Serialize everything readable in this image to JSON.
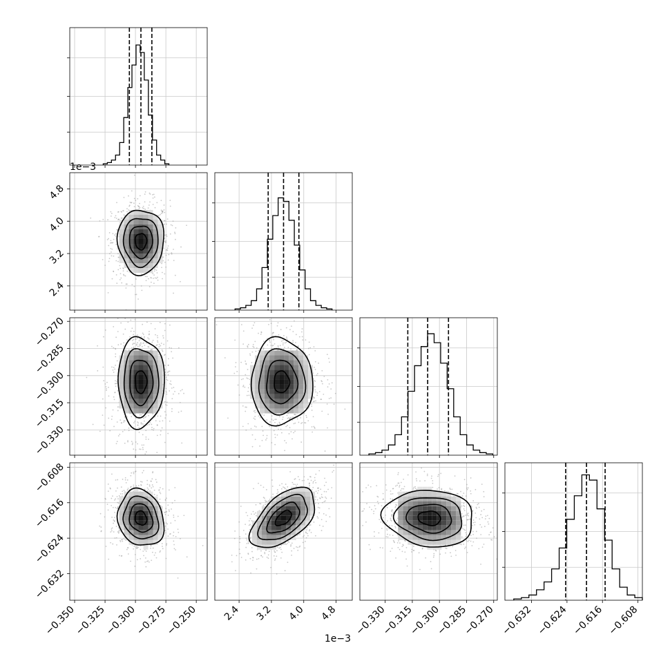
{
  "chart_data": {
    "type": "corner",
    "grid": true,
    "parameters": [
      {
        "range": [
          -0.354,
          -0.241
        ],
        "ticks": [
          -0.35,
          -0.325,
          -0.3,
          -0.275,
          -0.25
        ],
        "tick_labels": [
          "−0.350",
          "−0.325",
          "−0.300",
          "−0.275",
          "−0.250"
        ],
        "quantiles": [
          -0.305,
          -0.2955,
          -0.2865
        ],
        "hist_bins": [
          0.01,
          0.02,
          0.04,
          0.08,
          0.18,
          0.38,
          0.62,
          0.8,
          0.96,
          0.9,
          0.68,
          0.4,
          0.2,
          0.08,
          0.04,
          0.01
        ],
        "hist_peak_frac": 0.91,
        "hist_edges": [
          -0.3265,
          -0.2725
        ]
      },
      {
        "range": [
          1.8,
          5.2
        ],
        "ticks": [
          2.4,
          3.2,
          4.0,
          4.8
        ],
        "tick_labels": [
          "2.4",
          "3.2",
          "4.0",
          "4.8"
        ],
        "exponent_label": "1e−3",
        "quantiles": [
          3.12,
          3.5,
          3.88
        ],
        "hist_bins": [
          0.01,
          0.02,
          0.04,
          0.08,
          0.18,
          0.36,
          0.6,
          0.8,
          0.95,
          0.92,
          0.76,
          0.55,
          0.34,
          0.18,
          0.08,
          0.04,
          0.02,
          0.01
        ],
        "hist_peak_frac": 0.86,
        "hist_edges": [
          2.3,
          4.7
        ]
      },
      {
        "range": [
          -0.344,
          -0.268
        ],
        "ticks": [
          -0.33,
          -0.315,
          -0.3,
          -0.285,
          -0.27
        ],
        "tick_labels": [
          "−0.330",
          "−0.315",
          "−0.300",
          "−0.285",
          "−0.270"
        ],
        "quantiles": [
          -0.3175,
          -0.3065,
          -0.295
        ],
        "hist_bins": [
          0.01,
          0.02,
          0.04,
          0.08,
          0.16,
          0.3,
          0.5,
          0.7,
          0.85,
          0.95,
          0.88,
          0.72,
          0.52,
          0.3,
          0.16,
          0.08,
          0.04,
          0.02,
          0.01
        ],
        "hist_peak_frac": 0.93,
        "hist_edges": [
          -0.339,
          -0.2705
        ]
      },
      {
        "range": [
          -0.638,
          -0.607
        ],
        "ticks": [
          -0.632,
          -0.624,
          -0.616,
          -0.608
        ],
        "tick_labels": [
          "−0.632",
          "−0.624",
          "−0.616",
          "−0.608"
        ],
        "quantiles": [
          -0.6243,
          -0.6196,
          -0.6154
        ],
        "hist_bins": [
          0.01,
          0.02,
          0.04,
          0.08,
          0.14,
          0.24,
          0.4,
          0.62,
          0.8,
          0.96,
          0.92,
          0.7,
          0.46,
          0.24,
          0.1,
          0.04,
          0.02
        ],
        "hist_peak_frac": 0.95,
        "hist_edges": [
          -0.636,
          -0.607
        ]
      }
    ],
    "pairs": [
      {
        "row": 1,
        "col": 0,
        "center": [
          -0.2955,
          3.5
        ],
        "sigma": [
          0.0095,
          0.4
        ],
        "rho": 0.0
      },
      {
        "row": 2,
        "col": 0,
        "center": [
          -0.2955,
          -0.3035
        ],
        "sigma": [
          0.0095,
          0.0125
        ],
        "rho": 0.0
      },
      {
        "row": 2,
        "col": 1,
        "center": [
          3.45,
          -0.3035
        ],
        "sigma": [
          0.38,
          0.012
        ],
        "rho": 0.0
      },
      {
        "row": 3,
        "col": 0,
        "center": [
          -0.2955,
          -0.6195
        ],
        "sigma": [
          0.0095,
          0.0032
        ],
        "rho": -0.15
      },
      {
        "row": 3,
        "col": 1,
        "center": [
          3.5,
          -0.6195
        ],
        "sigma": [
          0.4,
          0.0034
        ],
        "rho": 0.55
      },
      {
        "row": 3,
        "col": 2,
        "center": [
          -0.3055,
          -0.6195
        ],
        "sigma": [
          0.0125,
          0.0032
        ],
        "rho": -0.1
      }
    ]
  }
}
